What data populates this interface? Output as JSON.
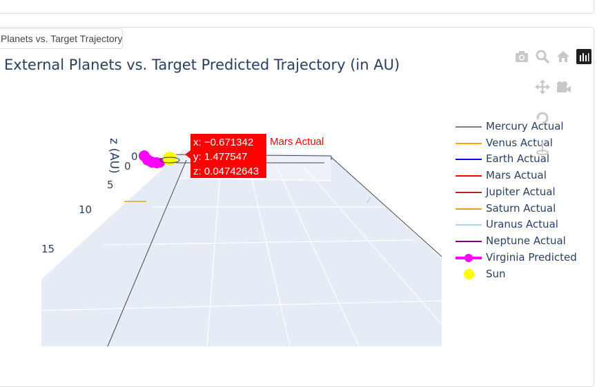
{
  "tab": {
    "label": "Planets vs. Target Trajectory"
  },
  "chart_data": {
    "type": "scatter3d",
    "title": "External Planets vs. Target Predicted Trajectory (in AU)",
    "zlabel": "z (AU)",
    "z_ticks": [
      "0",
      "5",
      "10",
      "15"
    ],
    "legend_position": "right",
    "series": [
      {
        "name": "Mercury Actual",
        "color": "#808080",
        "mode": "lines"
      },
      {
        "name": "Venus Actual",
        "color": "#ffa500",
        "mode": "lines"
      },
      {
        "name": "Earth Actual",
        "color": "#0000ff",
        "mode": "lines"
      },
      {
        "name": "Mars Actual",
        "color": "#ff0000",
        "mode": "lines"
      },
      {
        "name": "Jupiter Actual",
        "color": "#b22222",
        "mode": "lines"
      },
      {
        "name": "Saturn Actual",
        "color": "#daa520",
        "mode": "lines"
      },
      {
        "name": "Uranus Actual",
        "color": "#add8e6",
        "mode": "lines"
      },
      {
        "name": "Neptune Actual",
        "color": "#800080",
        "mode": "lines"
      },
      {
        "name": "Virginia Predicted",
        "color": "#ff00ff",
        "mode": "lines+markers"
      },
      {
        "name": "Sun",
        "color": "#ffff00",
        "mode": "markers"
      }
    ],
    "hover": {
      "x_text": "x: −0.671342",
      "y_text": "y: 1.477547",
      "z_text": "z: 0.04742643",
      "trace": "Mars Actual",
      "x": -0.671342,
      "y": 1.477547,
      "z": 0.04742643
    }
  },
  "modebar": [
    "camera-icon",
    "zoom-icon",
    "home-icon",
    "plotly-logo-icon",
    "pan-icon",
    "orbit-camera-icon",
    "turntable-rotation-icon",
    "reset-axes-icon"
  ]
}
